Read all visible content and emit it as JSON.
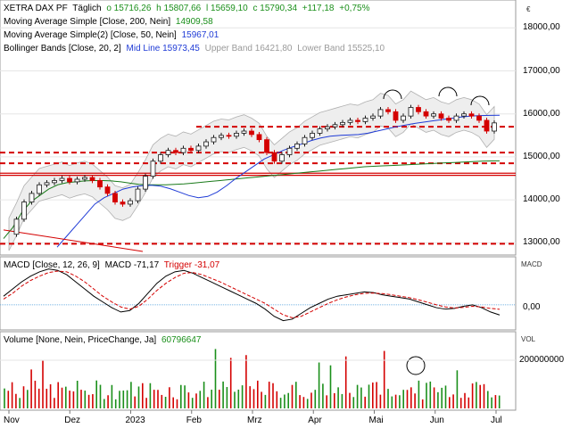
{
  "price_panel": {
    "instrument": "XETRA DAX PF",
    "period": "Täglich",
    "open": "o 15716,26",
    "high": "h 15807,66",
    "low": "l 15659,10",
    "close": "c 15790,34",
    "change": "+117,18",
    "change_pct": "+0,75%",
    "sma200_label": "Moving Average Simple [Close, 200, Nein]",
    "sma200_value": "14909,58",
    "sma50_label": "Moving Average Simple(2) [Close, 50, Nein]",
    "sma50_value": "15967,01",
    "bb_label": "Bollinger Bands [Close, 20, 2]",
    "bb_mid": "Mid Line 15973,45",
    "bb_upper": "Upper Band 16421,80",
    "bb_lower": "Lower Band 15525,10",
    "currency": "€"
  },
  "macd_panel": {
    "label": "MACD [Close, 12, 26, 9]",
    "macd_value": "MACD -71,17",
    "trigger_value": "Trigger -31,07",
    "unit": "MACD"
  },
  "volume_panel": {
    "label": "Volume [None, Nein, PriceChange, Ja]",
    "value": "60796647",
    "unit": "VOL"
  },
  "colors": {
    "up": "#1a8f1a",
    "down": "#d40000",
    "sma200": "#1a7a1a",
    "sma50": "#1f3bd6",
    "bollinger": "#b0b0b0",
    "support_lines": "#d40000",
    "macd_line": "#000000",
    "trigger_line": "#d40000"
  },
  "chart_data": [
    {
      "type": "line",
      "title": "XETRA DAX PF",
      "x_ticks": [
        "Nov",
        "Dez",
        "2023",
        "Feb",
        "Mrz",
        "Apr",
        "Mai",
        "Jun",
        "Jul"
      ],
      "y_ticks": [
        "13000,00",
        "14000,00",
        "15000,00",
        "16000,00",
        "17000,00",
        "18000,00"
      ],
      "ylim": [
        12800,
        18400
      ],
      "close_series": [
        13200,
        13550,
        13950,
        14150,
        14350,
        14400,
        14450,
        14500,
        14420,
        14480,
        14520,
        14450,
        14300,
        14150,
        13950,
        13900,
        13980,
        14250,
        14550,
        14900,
        15050,
        15150,
        15100,
        15200,
        15150,
        15250,
        15350,
        15450,
        15500,
        15480,
        15550,
        15600,
        15520,
        15400,
        15100,
        14900,
        15050,
        15200,
        15300,
        15450,
        15550,
        15650,
        15700,
        15750,
        15800,
        15850,
        15820,
        15900,
        15950,
        16100,
        16050,
        15850,
        15950,
        16150,
        16050,
        15950,
        16000,
        15900,
        15850,
        15950,
        16000,
        15950,
        15850,
        15600,
        15790
      ],
      "sma200_series": [
        13100,
        13350,
        13700,
        13950,
        14100,
        14250,
        14350,
        14400,
        14420,
        14440,
        14450,
        14450,
        14440,
        14420,
        14390,
        14360,
        14350,
        14350,
        14350,
        14360,
        14370,
        14390,
        14410,
        14430,
        14450,
        14470,
        14490,
        14510,
        14530,
        14550,
        14570,
        14590,
        14610,
        14630,
        14650,
        14670,
        14690,
        14710,
        14730,
        14750,
        14770,
        14780,
        14790,
        14800,
        14810,
        14820,
        14830,
        14840,
        14850,
        14860,
        14870,
        14880,
        14890,
        14900,
        14905,
        14909
      ],
      "sma50_series": [
        12900,
        13150,
        13400,
        13650,
        13900,
        14050,
        14150,
        14250,
        14300,
        14330,
        14340,
        14320,
        14260,
        14180,
        14100,
        14050,
        14080,
        14180,
        14330,
        14500,
        14650,
        14800,
        14950,
        15050,
        15150,
        15230,
        15300,
        15380,
        15440,
        15480,
        15500,
        15510,
        15520,
        15550,
        15600,
        15650,
        15700,
        15740,
        15780,
        15810,
        15840,
        15870,
        15900,
        15930,
        15950,
        15960,
        15965,
        15967
      ],
      "horizontal_lines": [
        {
          "label": "support/resistance",
          "value": 15700
        },
        {
          "label": "support/resistance",
          "value": 15100
        },
        {
          "label": "support/resistance",
          "value": 14850
        },
        {
          "label": "support/resistance",
          "value": 14620
        },
        {
          "label": "support/resistance",
          "value": 14570
        },
        {
          "label": "support/resistance",
          "value": 12980
        }
      ]
    },
    {
      "type": "line",
      "title": "MACD [Close, 12, 26, 9]",
      "y_ticks": [
        "0,00"
      ],
      "macd_series": [
        60,
        110,
        160,
        200,
        230,
        250,
        240,
        210,
        160,
        110,
        60,
        20,
        -20,
        -50,
        -40,
        10,
        80,
        150,
        200,
        230,
        240,
        220,
        190,
        160,
        130,
        100,
        70,
        40,
        10,
        -30,
        -80,
        -110,
        -100,
        -60,
        -20,
        10,
        40,
        60,
        70,
        80,
        90,
        85,
        70,
        60,
        50,
        40,
        20,
        0,
        -20,
        -30,
        -25,
        -10,
        0,
        -20,
        -50,
        -71
      ],
      "trigger_series": [
        40,
        80,
        130,
        170,
        200,
        225,
        235,
        230,
        200,
        160,
        110,
        60,
        20,
        -15,
        -30,
        -10,
        40,
        100,
        150,
        190,
        220,
        225,
        210,
        185,
        160,
        130,
        100,
        70,
        40,
        10,
        -30,
        -70,
        -90,
        -80,
        -50,
        -20,
        10,
        35,
        55,
        70,
        80,
        82,
        78,
        70,
        60,
        50,
        35,
        18,
        0,
        -15,
        -22,
        -18,
        -10,
        -15,
        -25,
        -31
      ]
    },
    {
      "type": "bar",
      "title": "Volume [None, Nein, PriceChange, Ja]",
      "y_ticks": [
        "200000000"
      ],
      "last_value": 60796647
    }
  ]
}
